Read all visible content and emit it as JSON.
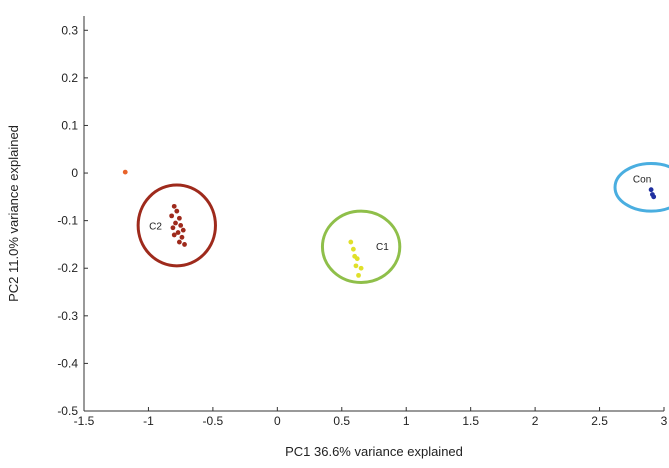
{
  "chart_data": {
    "type": "scatter",
    "xlabel": "PC1 36.6% variance explained",
    "ylabel": "PC2 11.0% variance explained",
    "xlim": [
      -1.5,
      3
    ],
    "ylim": [
      -0.5,
      0.33
    ],
    "x_ticks": [
      "-1.5",
      "-1",
      "-0.5",
      "0",
      "0.5",
      "1",
      "1.5",
      "2",
      "2.5",
      "3"
    ],
    "y_ticks": [
      "0.3",
      "0.2",
      "0.1",
      "0",
      "-0.1",
      "-0.2",
      "-0.3",
      "-0.4",
      "-0.5"
    ],
    "grid": false,
    "series": [
      {
        "color": "#e8632a",
        "points": [
          [
            -1.18,
            0.002
          ]
        ]
      },
      {
        "color": "#9e2a1c",
        "points": [
          [
            -0.8,
            -0.07
          ],
          [
            -0.78,
            -0.08
          ],
          [
            -0.82,
            -0.09
          ],
          [
            -0.76,
            -0.095
          ],
          [
            -0.79,
            -0.105
          ],
          [
            -0.75,
            -0.11
          ],
          [
            -0.81,
            -0.115
          ],
          [
            -0.73,
            -0.12
          ],
          [
            -0.77,
            -0.125
          ],
          [
            -0.8,
            -0.13
          ],
          [
            -0.74,
            -0.135
          ],
          [
            -0.76,
            -0.145
          ],
          [
            -0.72,
            -0.15
          ]
        ]
      },
      {
        "color": "#e0e02a",
        "points": [
          [
            0.57,
            -0.145
          ],
          [
            0.59,
            -0.16
          ],
          [
            0.6,
            -0.175
          ],
          [
            0.62,
            -0.18
          ],
          [
            0.61,
            -0.195
          ],
          [
            0.65,
            -0.2
          ],
          [
            0.63,
            -0.215
          ]
        ]
      },
      {
        "color": "#1f2fa0",
        "points": [
          [
            2.9,
            -0.035
          ],
          [
            2.91,
            -0.045
          ],
          [
            2.92,
            -0.05
          ]
        ]
      }
    ],
    "clusters": [
      {
        "label": "C2",
        "cx": -0.78,
        "cy": -0.11,
        "rx": 0.3,
        "ry": 0.085,
        "color": "#9e2a1c"
      },
      {
        "label": "C1",
        "cx": 0.65,
        "cy": -0.155,
        "rx": 0.3,
        "ry": 0.075,
        "color": "#8fbf4a"
      },
      {
        "label": "Con",
        "cx": 2.9,
        "cy": -0.03,
        "rx": 0.28,
        "ry": 0.05,
        "color": "#4aaee0"
      }
    ]
  }
}
